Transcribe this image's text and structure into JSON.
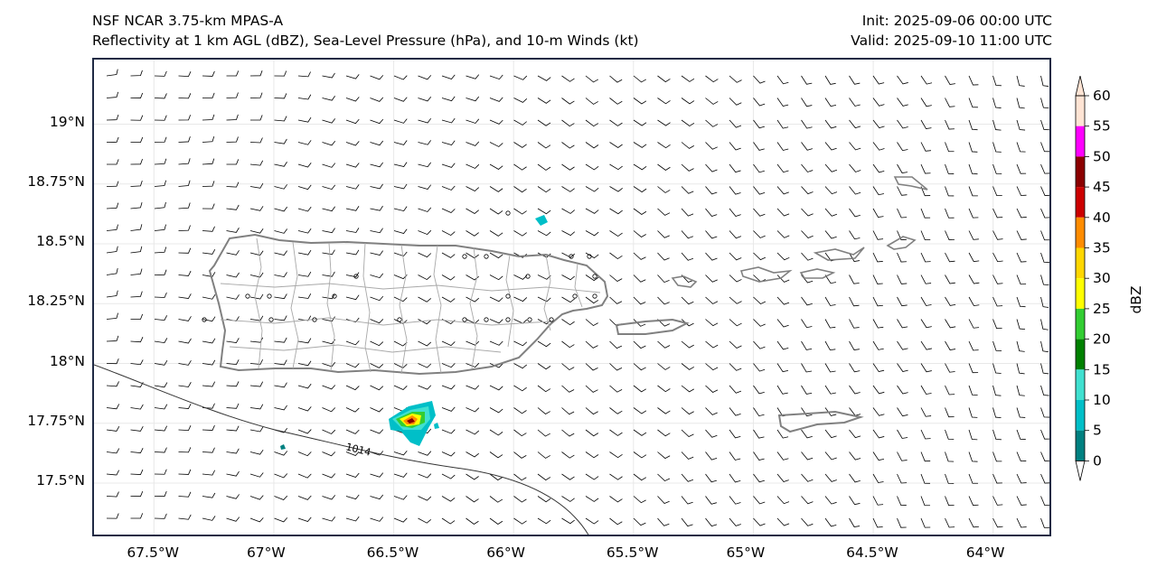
{
  "header": {
    "model": "NSF NCAR 3.75-km MPAS-A",
    "fields": "Reflectivity at 1 km AGL (dBZ), Sea-Level Pressure (hPa), and 10-m Winds (kt)",
    "init": "Init: 2025-09-06 00:00 UTC",
    "valid": "Valid: 2025-09-10 11:00 UTC"
  },
  "axes": {
    "lat_ticks": [
      "19°N",
      "18.75°N",
      "18.5°N",
      "18.25°N",
      "18°N",
      "17.75°N",
      "17.5°N"
    ],
    "lon_ticks": [
      "67.5°W",
      "67°W",
      "66.5°W",
      "66°W",
      "65.5°W",
      "65°W",
      "64.5°W",
      "64°W"
    ],
    "lon_range": [
      -67.75,
      -63.75
    ],
    "lat_range": [
      17.27,
      19.27
    ]
  },
  "isobar": {
    "label": "1014",
    "value": 1014,
    "unit": "hPa"
  },
  "colorbar": {
    "label": "dBZ",
    "ticks": [
      "0",
      "5",
      "10",
      "15",
      "20",
      "25",
      "30",
      "35",
      "40",
      "45",
      "50",
      "55",
      "60"
    ],
    "colors": [
      "#ffffff",
      "#008080",
      "#00bfc8",
      "#40e0d0",
      "#008000",
      "#32cd32",
      "#ffff00",
      "#ffd700",
      "#ff8c00",
      "#cc0000",
      "#8b0000",
      "#ff00ff",
      "#ffe4d4"
    ]
  },
  "colors": {
    "coastline": "#808080",
    "municipal": "#a0a0a0",
    "frame": "#1f2a44",
    "grid": "#e8e8e8"
  }
}
